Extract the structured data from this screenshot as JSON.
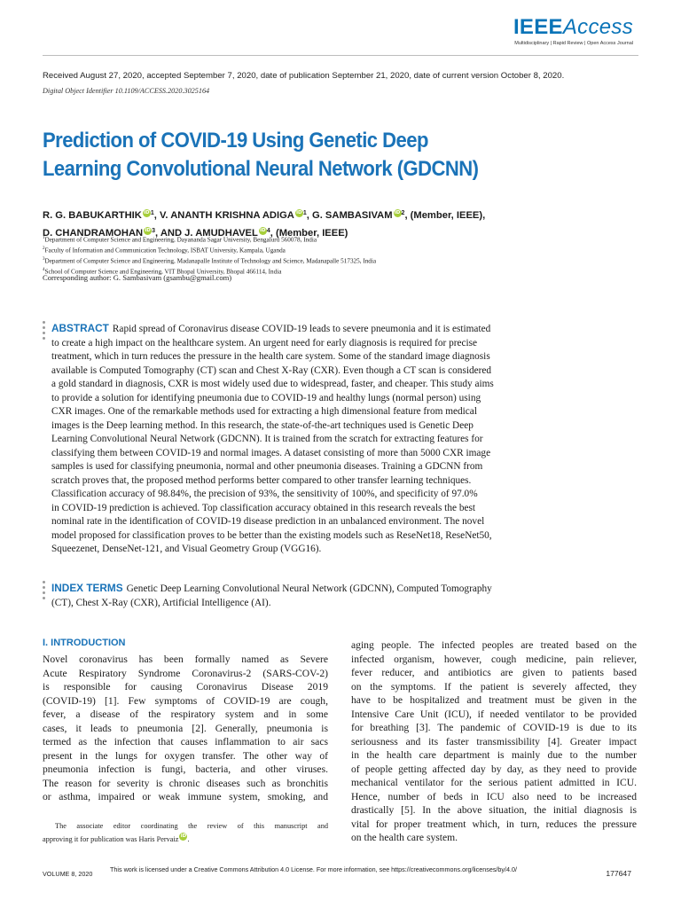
{
  "header": {
    "brand_bold": "IEEE",
    "brand_italic": "Access",
    "tagline": "Multidisciplinary  |  Rapid Review  |  Open Access Journal"
  },
  "received_line": "Received August 27, 2020, accepted September 7, 2020, date of publication September 21, 2020, date of current version October 8, 2020.",
  "doi_line": "Digital Object Identifier 10.1109/ACCESS.2020.3025164",
  "title_lines": [
    "Prediction of COVID-19 Using Genetic Deep",
    "Learning Convolutional Neural Network (GDCNN)"
  ],
  "authors": {
    "a1": "R. G. BABUKARTHIK",
    "a1_sup": "1",
    "a2": ", V. ANANTH KRISHNA ADIGA",
    "a2_sup": "1",
    "a3": ", G. SAMBASIVAM",
    "a3_sup": "2",
    "a3_suffix": ", (Member, IEEE),",
    "a4": "D. CHANDRAMOHAN",
    "a4_sup": "3",
    "a5": ", AND J. AMUDHAVEL",
    "a5_sup": "4",
    "a5_suffix": ", (Member, IEEE)",
    "orcid_glyph": "iD"
  },
  "affiliations": [
    {
      "num": "1",
      "text": "Department of Computer Science and Engineering, Dayananda Sagar University, Bengaluru 560078, India"
    },
    {
      "num": "2",
      "text": "Faculty of Information and Communication Technology, ISBAT University, Kampala, Uganda"
    },
    {
      "num": "3",
      "text": "Department of Computer Science and Engineering, Madanapalle Institute of Technology and Science, Madanapalle 517325, India"
    },
    {
      "num": "4",
      "text": "School of Computer Science and Engineering, VIT Bhopal University, Bhopal 466114, India"
    }
  ],
  "corresponding": "Corresponding author: G. Sambasivam (gsambu@gmail.com)",
  "abstract": {
    "label": "ABSTRACT",
    "lines": [
      "Rapid spread of Coronavirus disease COVID-19 leads to severe pneumonia and it is estimated",
      "to create a high impact on the healthcare system. An urgent need for early diagnosis is required for precise",
      "treatment, which in turn reduces the pressure in the health care system. Some of the standard image diagnosis",
      "available is Computed Tomography (CT) scan and Chest X-Ray (CXR). Even though a CT scan is considered",
      "a gold standard in diagnosis, CXR is most widely used due to widespread, faster, and cheaper. This study aims",
      "to provide a solution for identifying pneumonia due to COVID-19 and healthy lungs (normal person) using",
      "CXR images. One of the remarkable methods used for extracting a high dimensional feature from medical",
      "images is the Deep learning method. In this research, the state-of-the-art techniques used is Genetic Deep",
      "Learning Convolutional Neural Network (GDCNN). It is trained from the scratch for extracting features for",
      "classifying them between COVID-19 and normal images. A dataset consisting of more than 5000 CXR image",
      "samples is used for classifying pneumonia, normal and other pneumonia diseases. Training a GDCNN from",
      "scratch proves that, the proposed method performs better compared to other transfer learning techniques.",
      "Classification accuracy of 98.84%, the precision of 93%, the sensitivity of 100%, and specificity of 97.0%",
      "in COVID-19 prediction is achieved. Top classification accuracy obtained in this research reveals the best",
      "nominal rate in the identification of COVID-19 disease prediction in an unbalanced environment. The novel",
      "model proposed for classification proves to be better than the existing models such as ReseNet18, ReseNet50,",
      "Squeezenet, DenseNet-121, and Visual Geometry Group (VGG16)."
    ]
  },
  "index_terms": {
    "label": "INDEX TERMS",
    "lines": [
      "Genetic Deep Learning Convolutional Neural Network (GDCNN), Computed Tomography",
      "(CT), Chest X-Ray (CXR), Artificial Intelligence (AI)."
    ]
  },
  "section": {
    "heading": "I. INTRODUCTION",
    "left_lines": [
      "Novel coronavirus has been formally named as Severe",
      "Acute Respiratory Syndrome Coronavirus-2 (SARS-COV-2)",
      "is responsible for causing Coronavirus Disease 2019",
      "(COVID-19) [1]. Few symptoms of COVID-19 are cough,",
      "fever, a disease of the respiratory system and in some",
      "cases, it leads to pneumonia [2]. Generally, pneumonia is",
      "termed as the infection that causes inflammation to air sacs",
      "present in the lungs for oxygen transfer. The other way of",
      "pneumonia infection is fungi, bacteria, and other viruses.",
      "The reason for severity is chronic diseases such as bronchitis",
      "or asthma, impaired or weak immune system, smoking, and"
    ],
    "right_lines": [
      "aging people. The infected peoples are treated based on the",
      "infected organism, however, cough medicine, pain reliever,",
      "fever reducer, and antibiotics are given to patients based",
      "on the symptoms. If the patient is severely affected, they",
      "have to be hospitalized and treatment must be given in the",
      "Intensive Care Unit (ICU), if needed ventilator to be provided",
      "for breathing [3]. The pandemic of COVID-19 is due to its",
      "seriousness and its faster transmissibility [4]. Greater impact",
      "in the health care department is mainly due to the number",
      "of people getting affected day by day, as they need to provide",
      "mechanical ventilator for the serious patient admitted in ICU.",
      "Hence, number of beds in ICU also need to be increased",
      "drastically [5]. In the above situation, the initial diagnosis is",
      "vital for proper treatment which, in turn, reduces the pressure",
      "on the health care system."
    ]
  },
  "footnote": {
    "line1": "The associate editor coordinating the review of this manuscript and",
    "line2": "approving it for publication was Haris Pervaiz",
    "line2_end": "."
  },
  "footer": {
    "volume": "VOLUME 8, 2020",
    "license": "This work is licensed under a Creative Commons Attribution 4.0 License. For more information, see https://creativecommons.org/licenses/by/4.0/",
    "page": "177647"
  }
}
